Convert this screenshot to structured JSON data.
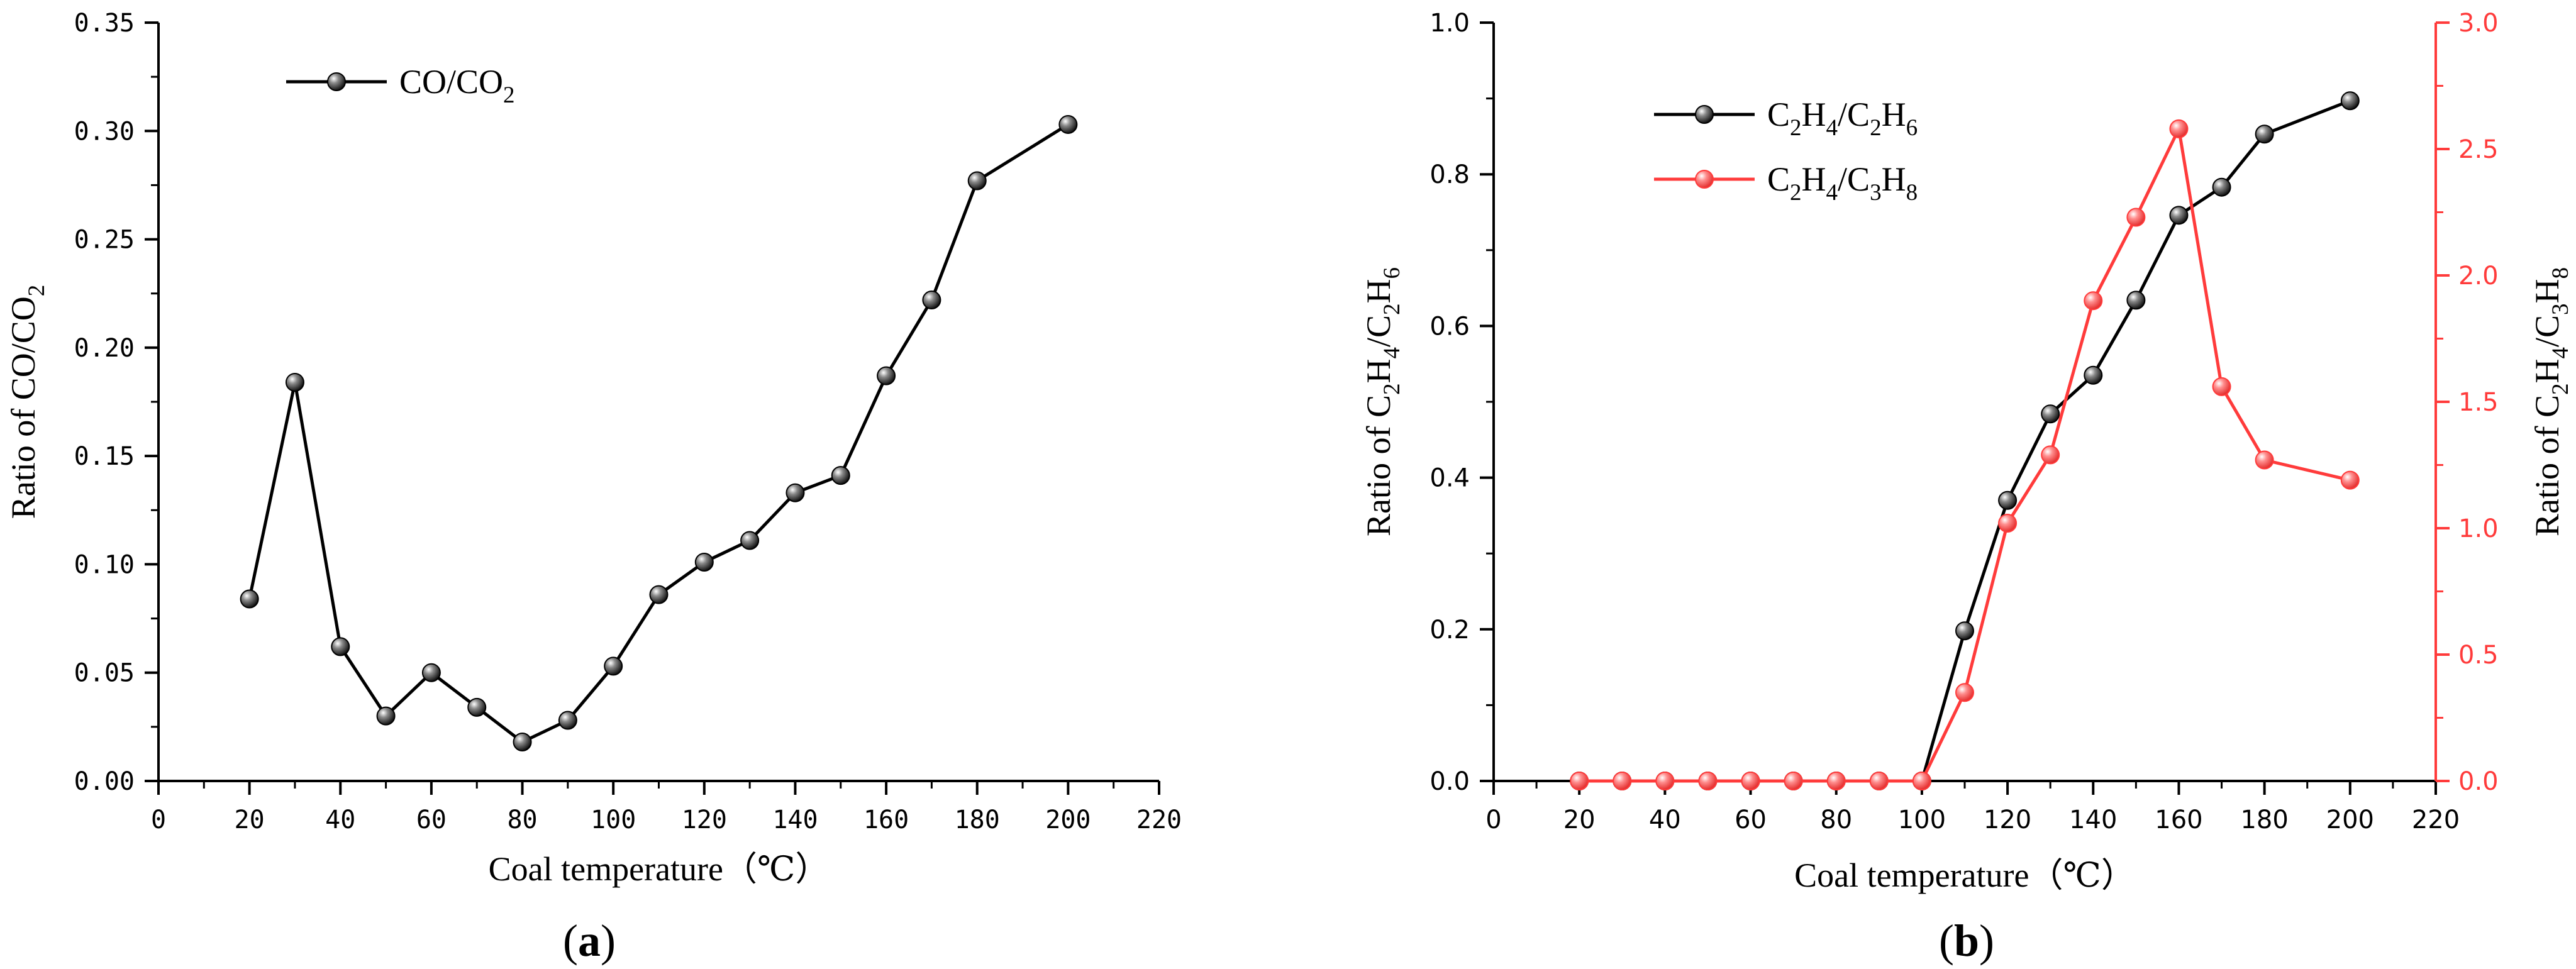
{
  "chart_data": [
    {
      "type": "line",
      "panel_label": "a",
      "xlabel": "Coal temperature（℃）",
      "ylabel": "Ratio of CO/CO2",
      "xlim": [
        0,
        220
      ],
      "ylim": [
        0,
        0.35
      ],
      "xticks": [
        "0",
        "20",
        "40",
        "60",
        "80",
        "100",
        "120",
        "140",
        "160",
        "180",
        "200",
        "220"
      ],
      "yticks": [
        "0.00",
        "0.05",
        "0.10",
        "0.15",
        "0.20",
        "0.25",
        "0.30",
        "0.35"
      ],
      "grid": false,
      "legend_position": "top-left",
      "series": [
        {
          "name": "CO/CO2",
          "color": "#000000",
          "axis": "left",
          "x": [
            20,
            30,
            40,
            50,
            60,
            70,
            80,
            90,
            100,
            110,
            120,
            130,
            140,
            150,
            160,
            170,
            180,
            200
          ],
          "y": [
            0.084,
            0.184,
            0.062,
            0.03,
            0.05,
            0.034,
            0.018,
            0.028,
            0.053,
            0.086,
            0.101,
            0.111,
            0.133,
            0.141,
            0.187,
            0.222,
            0.277,
            0.303
          ]
        }
      ]
    },
    {
      "type": "line",
      "panel_label": "b",
      "xlabel": "Coal temperature（℃）",
      "ylabel_left": "Ratio of C2H4/C2H6",
      "ylabel_right": "Ratio of C2H4/C3H8",
      "xlim": [
        0,
        220
      ],
      "ylim_left": [
        0,
        1.0
      ],
      "ylim_right": [
        0,
        3.0
      ],
      "xticks": [
        "0",
        "20",
        "40",
        "60",
        "80",
        "100",
        "120",
        "140",
        "160",
        "180",
        "200",
        "220"
      ],
      "yticks_left": [
        "0.0",
        "0.2",
        "0.4",
        "0.6",
        "0.8",
        "1.0"
      ],
      "yticks_right": [
        "0.0",
        "0.5",
        "1.0",
        "1.5",
        "2.0",
        "2.5",
        "3.0"
      ],
      "grid": false,
      "legend_position": "top-left",
      "series": [
        {
          "name": "C2H4/C2H6",
          "color": "#000000",
          "axis": "left",
          "x": [
            20,
            30,
            40,
            50,
            60,
            70,
            80,
            90,
            100,
            110,
            120,
            130,
            140,
            150,
            160,
            170,
            180,
            200
          ],
          "y": [
            0,
            0,
            0,
            0,
            0,
            0,
            0,
            0,
            0,
            0.198,
            0.37,
            0.484,
            0.535,
            0.634,
            0.746,
            0.783,
            0.853,
            0.897
          ]
        },
        {
          "name": "C2H4/C3H8",
          "color": "#ff3b3b",
          "axis": "right",
          "x": [
            20,
            30,
            40,
            50,
            60,
            70,
            80,
            90,
            100,
            110,
            120,
            130,
            140,
            150,
            160,
            170,
            180,
            200
          ],
          "y": [
            0,
            0,
            0,
            0,
            0,
            0,
            0,
            0,
            0,
            0.35,
            1.02,
            1.29,
            1.9,
            2.23,
            2.58,
            1.56,
            1.27,
            1.19
          ]
        }
      ]
    }
  ]
}
